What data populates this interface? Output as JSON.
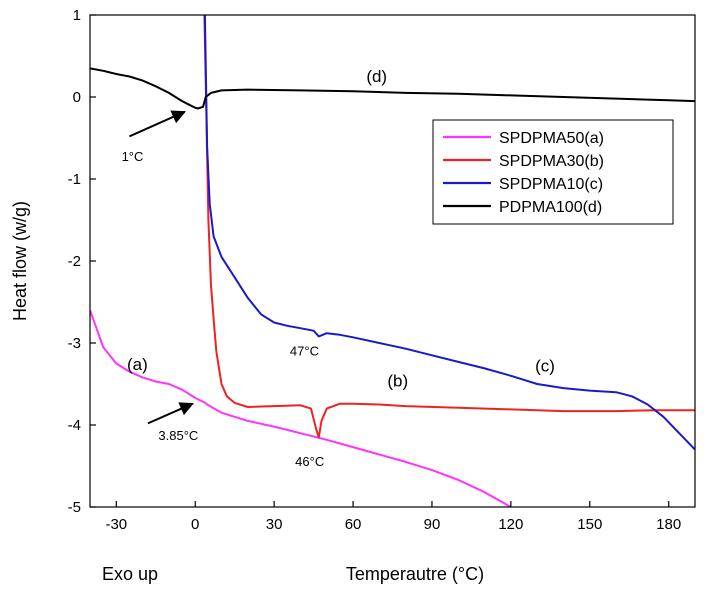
{
  "chart_data": {
    "type": "line",
    "xlabel": "Temperautre (°C)",
    "ylabel": "Heat flow (w/g)",
    "corner_note": "Exo up",
    "xlim": [
      -40,
      190
    ],
    "ylim": [
      -5,
      1
    ],
    "xticks": [
      -30,
      0,
      30,
      60,
      90,
      120,
      150,
      180
    ],
    "yticks": [
      1,
      0,
      -1,
      -2,
      -3,
      -4,
      -5
    ],
    "grid": false,
    "legend": "right",
    "series": [
      {
        "name": "SPDPMA50(a)",
        "color": "#ff33ff",
        "points": [
          [
            -40,
            -2.6
          ],
          [
            -35,
            -3.05
          ],
          [
            -30,
            -3.25
          ],
          [
            -25,
            -3.35
          ],
          [
            -20,
            -3.42
          ],
          [
            -15,
            -3.47
          ],
          [
            -10,
            -3.5
          ],
          [
            -5,
            -3.57
          ],
          [
            0,
            -3.67
          ],
          [
            3.85,
            -3.73
          ],
          [
            5,
            -3.76
          ],
          [
            10,
            -3.85
          ],
          [
            20,
            -3.95
          ],
          [
            30,
            -4.02
          ],
          [
            40,
            -4.1
          ],
          [
            50,
            -4.18
          ],
          [
            60,
            -4.27
          ],
          [
            70,
            -4.36
          ],
          [
            80,
            -4.45
          ],
          [
            90,
            -4.55
          ],
          [
            100,
            -4.67
          ],
          [
            110,
            -4.82
          ],
          [
            120,
            -5.0
          ]
        ]
      },
      {
        "name": "SPDPMA30(b)",
        "color": "#ee2222",
        "points": [
          [
            3.5,
            1.0
          ],
          [
            4,
            0.2
          ],
          [
            5,
            -1.5
          ],
          [
            6,
            -2.3
          ],
          [
            7,
            -2.7
          ],
          [
            8,
            -3.1
          ],
          [
            10,
            -3.5
          ],
          [
            12,
            -3.65
          ],
          [
            15,
            -3.73
          ],
          [
            20,
            -3.78
          ],
          [
            30,
            -3.77
          ],
          [
            40,
            -3.76
          ],
          [
            44,
            -3.8
          ],
          [
            46,
            -4.05
          ],
          [
            47,
            -4.15
          ],
          [
            48,
            -3.95
          ],
          [
            50,
            -3.8
          ],
          [
            55,
            -3.74
          ],
          [
            60,
            -3.74
          ],
          [
            70,
            -3.75
          ],
          [
            80,
            -3.77
          ],
          [
            100,
            -3.79
          ],
          [
            120,
            -3.81
          ],
          [
            140,
            -3.83
          ],
          [
            160,
            -3.83
          ],
          [
            175,
            -3.82
          ],
          [
            190,
            -3.82
          ]
        ]
      },
      {
        "name": "SPDPMA10(c)",
        "color": "#1a1acc",
        "points": [
          [
            3.7,
            1.0
          ],
          [
            4.5,
            -0.6
          ],
          [
            5.5,
            -1.3
          ],
          [
            7,
            -1.7
          ],
          [
            10,
            -1.95
          ],
          [
            15,
            -2.2
          ],
          [
            20,
            -2.45
          ],
          [
            25,
            -2.65
          ],
          [
            30,
            -2.75
          ],
          [
            35,
            -2.79
          ],
          [
            40,
            -2.82
          ],
          [
            45,
            -2.85
          ],
          [
            47,
            -2.92
          ],
          [
            50,
            -2.88
          ],
          [
            55,
            -2.9
          ],
          [
            60,
            -2.93
          ],
          [
            70,
            -3.0
          ],
          [
            80,
            -3.07
          ],
          [
            90,
            -3.15
          ],
          [
            100,
            -3.23
          ],
          [
            110,
            -3.31
          ],
          [
            120,
            -3.4
          ],
          [
            130,
            -3.5
          ],
          [
            140,
            -3.55
          ],
          [
            150,
            -3.58
          ],
          [
            160,
            -3.6
          ],
          [
            166,
            -3.65
          ],
          [
            172,
            -3.75
          ],
          [
            178,
            -3.9
          ],
          [
            184,
            -4.1
          ],
          [
            190,
            -4.3
          ]
        ]
      },
      {
        "name": "PDPMA100(d)",
        "color": "#000000",
        "points": [
          [
            -40,
            0.35
          ],
          [
            -35,
            0.32
          ],
          [
            -30,
            0.28
          ],
          [
            -25,
            0.25
          ],
          [
            -20,
            0.2
          ],
          [
            -15,
            0.13
          ],
          [
            -10,
            0.05
          ],
          [
            -5,
            -0.05
          ],
          [
            -2,
            -0.1
          ],
          [
            0,
            -0.13
          ],
          [
            1,
            -0.14
          ],
          [
            3,
            -0.12
          ],
          [
            4,
            0.0
          ],
          [
            6,
            0.05
          ],
          [
            10,
            0.08
          ],
          [
            20,
            0.09
          ],
          [
            40,
            0.08
          ],
          [
            60,
            0.07
          ],
          [
            80,
            0.05
          ],
          [
            100,
            0.04
          ],
          [
            120,
            0.02
          ],
          [
            140,
            0.0
          ],
          [
            160,
            -0.02
          ],
          [
            180,
            -0.04
          ],
          [
            190,
            -0.05
          ]
        ]
      }
    ],
    "curve_labels": [
      {
        "text": "(a)",
        "x": -22,
        "y": -3.33
      },
      {
        "text": "(b)",
        "x": 77,
        "y": -3.53
      },
      {
        "text": "(c)",
        "x": 133,
        "y": -3.35
      },
      {
        "text": "(d)",
        "x": 69,
        "y": 0.18
      }
    ],
    "annotations": [
      {
        "text": "1°C",
        "label_x": -28,
        "label_y": -0.78,
        "arrow_from": [
          -25,
          -0.48
        ],
        "arrow_to": [
          -4,
          -0.18
        ]
      },
      {
        "text": "3.85°C",
        "label_x": -14,
        "label_y": -4.18,
        "arrow_from": [
          -18,
          -3.98
        ],
        "arrow_to": [
          -1,
          -3.74
        ]
      },
      {
        "text": "46°C",
        "label_x": 38,
        "label_y": -4.5
      },
      {
        "text": "47°C",
        "label_x": 36,
        "label_y": -3.15
      }
    ]
  }
}
